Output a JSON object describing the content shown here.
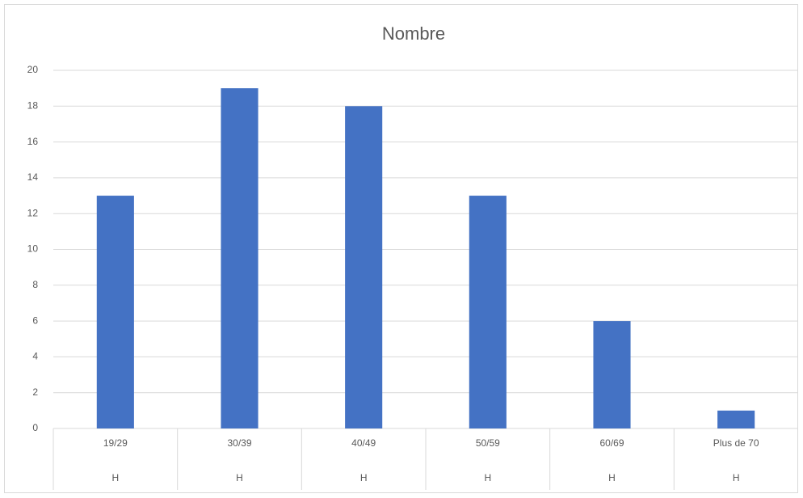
{
  "chart_data": {
    "type": "bar",
    "title": "Nombre",
    "categories": [
      "19/29",
      "30/39",
      "40/49",
      "50/59",
      "60/69",
      "Plus de 70"
    ],
    "subcategories": [
      "H",
      "H",
      "H",
      "H",
      "H",
      "H"
    ],
    "values": [
      13,
      19,
      18,
      13,
      6,
      1
    ],
    "color": "#4472c4",
    "ylim": [
      0,
      20
    ],
    "yticks": [
      0,
      2,
      4,
      6,
      8,
      10,
      12,
      14,
      16,
      18,
      20
    ],
    "grid": true
  }
}
